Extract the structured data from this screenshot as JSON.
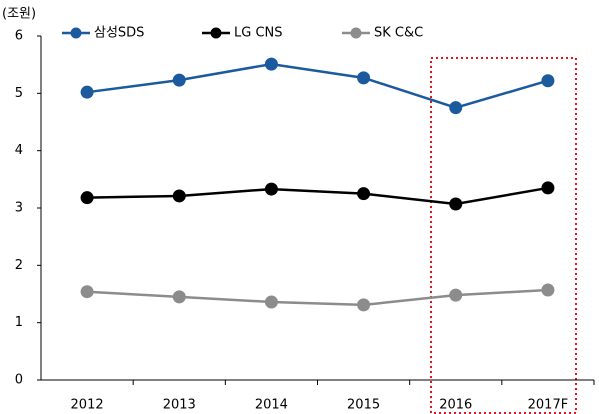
{
  "chart_data": {
    "type": "line",
    "y_label": "(조원)",
    "categories": [
      "2012",
      "2013",
      "2014",
      "2015",
      "2016",
      "2017F"
    ],
    "series": [
      {
        "name": "삼성SDS",
        "color": "#1c5a9e",
        "values": [
          5.02,
          5.23,
          5.51,
          5.27,
          4.75,
          5.22
        ]
      },
      {
        "name": "LG CNS",
        "color": "#000000",
        "values": [
          3.18,
          3.21,
          3.33,
          3.25,
          3.07,
          3.35
        ]
      },
      {
        "name": "SK C&C",
        "color": "#8c8c8c",
        "values": [
          1.54,
          1.45,
          1.36,
          1.31,
          1.48,
          1.57
        ]
      }
    ],
    "ylim": [
      0,
      6
    ],
    "yticks": [
      0,
      1,
      2,
      3,
      4,
      5,
      6
    ],
    "grid": false,
    "legend": "top"
  }
}
